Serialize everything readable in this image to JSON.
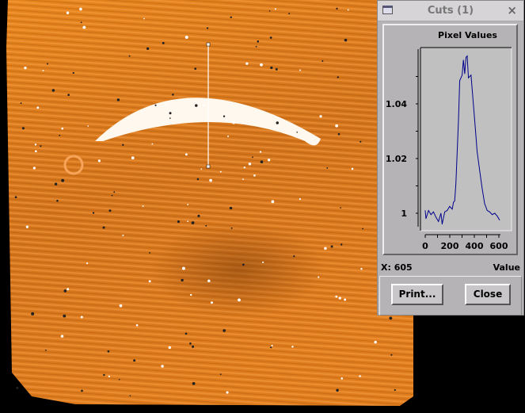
{
  "cuts_window": {
    "title": "Cuts (1)",
    "close_glyph": "×",
    "print_label": "Print...",
    "close_label": "Close",
    "x_readout": "X: 605",
    "value_label": "Value"
  },
  "image": {
    "accent_color": "#e8801a",
    "cut_line_color": "#ffffff"
  },
  "chart_data": {
    "type": "line",
    "title": "Pixel Values",
    "xlabel": "",
    "ylabel": "",
    "xlim": [
      0,
      620
    ],
    "ylim": [
      0.995,
      1.06
    ],
    "x_ticks": [
      "0",
      "200",
      "400",
      "600"
    ],
    "y_ticks": [
      "1",
      "1.02",
      "1.04"
    ],
    "grid": false,
    "line_color": "#00008b",
    "series": [
      {
        "x": [
          0,
          6,
          27,
          47,
          67,
          88,
          108,
          128,
          138,
          159,
          179,
          199,
          220,
          230,
          240,
          250,
          271,
          281,
          301,
          311,
          322,
          332,
          342,
          352,
          373,
          383,
          403,
          423,
          444,
          464,
          484,
          505,
          525,
          545,
          566,
          586,
          606
        ],
        "y": [
          1.001,
          0.998,
          1.001,
          0.9995,
          1.0005,
          0.9985,
          0.997,
          1.0,
          0.996,
          1.0005,
          1.001,
          1.0025,
          1.0015,
          1.004,
          1.0045,
          1.011,
          1.034,
          1.0485,
          1.0505,
          1.056,
          1.051,
          1.057,
          1.0575,
          1.0495,
          1.0505,
          1.045,
          1.034,
          1.0225,
          1.0155,
          1.009,
          1.0035,
          1.001,
          1.0005,
          0.9995,
          1.0,
          0.999,
          0.9975
        ]
      }
    ]
  }
}
